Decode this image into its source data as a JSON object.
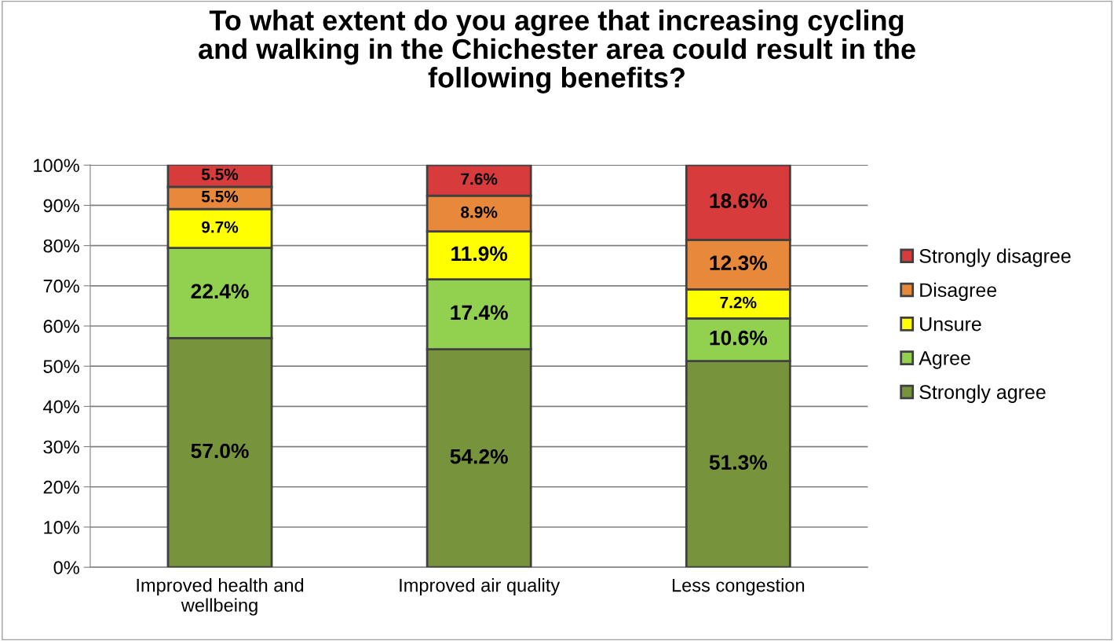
{
  "chart_data": {
    "type": "bar",
    "stacked": true,
    "title": "To what extent do you agree that increasing cycling\nand walking in the Chichester area could result in the\nfollowing benefits?",
    "categories": [
      "Improved health and\nwellbeing",
      "Improved air quality",
      "Less congestion"
    ],
    "series": [
      {
        "name": "Strongly agree",
        "color": "#77933c",
        "values": [
          57.0,
          54.2,
          51.3
        ],
        "value_labels": [
          "57.0%",
          "54.2%",
          "51.3%"
        ]
      },
      {
        "name": "Agree",
        "color": "#92d050",
        "values": [
          22.4,
          17.4,
          10.6
        ],
        "value_labels": [
          "22.4%",
          "17.4%",
          "10.6%"
        ]
      },
      {
        "name": "Unsure",
        "color": "#ffff00",
        "values": [
          9.7,
          11.9,
          7.2
        ],
        "value_labels": [
          "9.7%",
          "11.9%",
          "7.2%"
        ]
      },
      {
        "name": "Disagree",
        "color": "#e8883a",
        "values": [
          5.5,
          8.9,
          12.3
        ],
        "value_labels": [
          "5.5%",
          "8.9%",
          "12.3%"
        ]
      },
      {
        "name": "Strongly disagree",
        "color": "#d83b3b",
        "values": [
          5.5,
          7.6,
          18.6
        ],
        "value_labels": [
          "5.5%",
          "7.6%",
          "18.6%"
        ]
      }
    ],
    "ylim": [
      0,
      100.1
    ],
    "yticks": [
      {
        "value": 0,
        "label": "0%"
      },
      {
        "value": 10,
        "label": "10%"
      },
      {
        "value": 20,
        "label": "20%"
      },
      {
        "value": 30,
        "label": "30%"
      },
      {
        "value": 40,
        "label": "40%"
      },
      {
        "value": 50,
        "label": "50%"
      },
      {
        "value": 60,
        "label": "60%"
      },
      {
        "value": 70,
        "label": "70%"
      },
      {
        "value": 80,
        "label": "80%"
      },
      {
        "value": 90,
        "label": "90%"
      },
      {
        "value": 100,
        "label": "100%"
      }
    ],
    "grid": "y",
    "legend": "right"
  }
}
